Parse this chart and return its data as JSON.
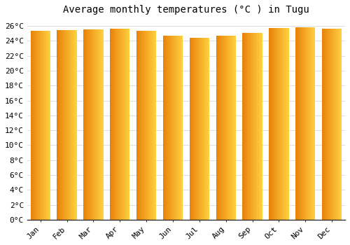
{
  "title": "Average monthly temperatures (°C ) in Tugu",
  "months": [
    "Jan",
    "Feb",
    "Mar",
    "Apr",
    "May",
    "Jun",
    "Jul",
    "Aug",
    "Sep",
    "Oct",
    "Nov",
    "Dec"
  ],
  "values": [
    25.3,
    25.4,
    25.5,
    25.6,
    25.3,
    24.7,
    24.4,
    24.7,
    25.1,
    25.7,
    25.8,
    25.6
  ],
  "bar_color_left": "#E8820A",
  "bar_color_right": "#FFD040",
  "background_color": "#FFFFFF",
  "grid_color": "#DDDDDD",
  "ylim": [
    0,
    27
  ],
  "ytick_step": 2,
  "title_fontsize": 10,
  "tick_fontsize": 8,
  "font_family": "monospace",
  "bar_width": 0.75,
  "gradient_segments": 50
}
